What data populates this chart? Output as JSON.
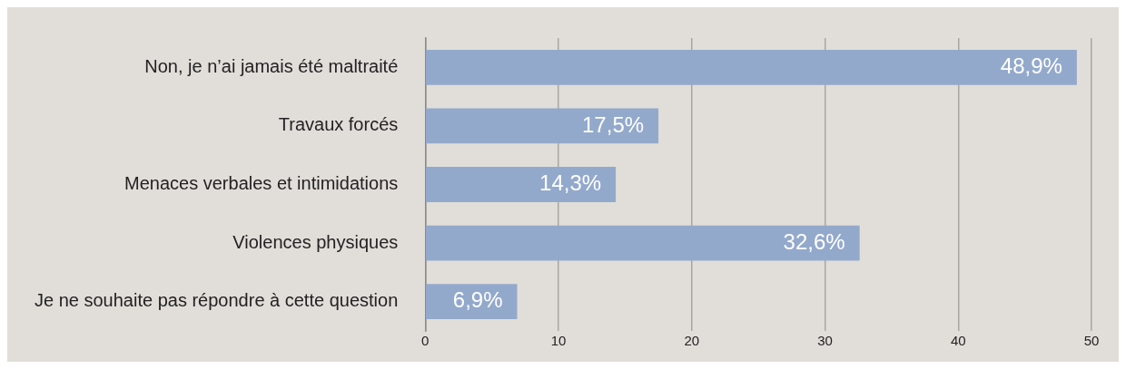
{
  "chart_data": {
    "type": "bar",
    "orientation": "horizontal",
    "categories": [
      "Non, je n’ai jamais été maltraité",
      "Travaux forcés",
      "Menaces verbales et intimidations",
      "Violences physiques",
      "Je ne souhaite pas répondre à cette question"
    ],
    "values": [
      48.9,
      17.5,
      14.3,
      32.6,
      6.9
    ],
    "value_labels": [
      "48,9%",
      "17,5%",
      "14,3%",
      "32,6%",
      "6,9%"
    ],
    "color": "#93a9cc",
    "xlim": [
      0,
      50
    ],
    "xticks": [
      0,
      10,
      20,
      30,
      40,
      50
    ],
    "grid": "x",
    "legend": false
  }
}
